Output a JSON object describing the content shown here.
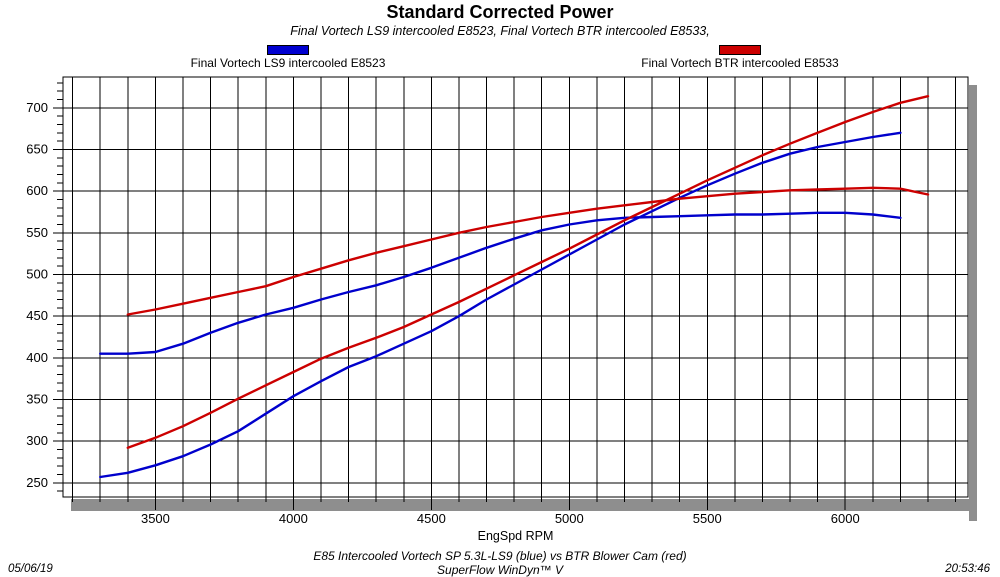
{
  "header": {
    "title": "Standard Corrected Power",
    "subtitle": "Final Vortech LS9 intercooled E8523, Final Vortech BTR intercooled E8533,"
  },
  "legend": [
    {
      "label": "Final Vortech LS9 intercooled E8523",
      "color": "#0000d0"
    },
    {
      "label": "Final Vortech BTR intercooled E8533",
      "color": "#cc0000"
    }
  ],
  "footer": {
    "date": "05/06/19",
    "note_line1": "E85 Intercooled Vortech SP 5.3L-LS9 (blue) vs BTR Blower Cam (red)",
    "note_line2": "SuperFlow WinDyn™ V",
    "time": "20:53:46"
  },
  "chart_data": {
    "type": "line",
    "title": "Standard Corrected Power",
    "xlabel": "EngSpd RPM",
    "ylabel": "",
    "xlim": [
      3165,
      6445
    ],
    "ylim": [
      233,
      737
    ],
    "x_major_ticks": [
      3500,
      4000,
      4500,
      5000,
      5500,
      6000
    ],
    "x_grid_step": 100,
    "y_major_ticks": [
      250,
      300,
      350,
      400,
      450,
      500,
      550,
      600,
      650,
      700
    ],
    "y_minor_tick_step": 10,
    "grid": "full grid: vertical every 100 RPM, horizontal every 50",
    "legend_position": "top, outside plot",
    "frame_shadow_color": "#8e8e8e",
    "grid_color": "#000000",
    "series": [
      {
        "name": "Final Vortech LS9 intercooled E8523 - power curve (blue)",
        "color": "#0000cc",
        "x": [
          3300,
          3400,
          3500,
          3600,
          3700,
          3800,
          3900,
          4000,
          4100,
          4200,
          4300,
          4400,
          4500,
          4600,
          4700,
          4800,
          4900,
          5000,
          5100,
          5200,
          5300,
          5400,
          5500,
          5600,
          5700,
          5800,
          5900,
          6000,
          6100,
          6200
        ],
        "y": [
          257,
          262,
          271,
          282,
          296,
          312,
          333,
          354,
          372,
          389,
          402,
          417,
          432,
          450,
          470,
          488,
          506,
          524,
          542,
          560,
          576,
          592,
          607,
          621,
          634,
          645,
          653,
          659,
          665,
          670
        ]
      },
      {
        "name": "Final Vortech LS9 intercooled E8523 - torque curve (blue)",
        "color": "#0000cc",
        "x": [
          3300,
          3400,
          3500,
          3600,
          3700,
          3800,
          3900,
          4000,
          4100,
          4200,
          4300,
          4400,
          4500,
          4600,
          4700,
          4800,
          4900,
          5000,
          5100,
          5200,
          5300,
          5400,
          5500,
          5600,
          5700,
          5800,
          5900,
          6000,
          6100,
          6200
        ],
        "y": [
          405,
          405,
          407,
          417,
          430,
          442,
          452,
          460,
          470,
          479,
          487,
          497,
          508,
          520,
          532,
          543,
          553,
          560,
          565,
          568,
          569,
          570,
          571,
          572,
          572,
          573,
          574,
          574,
          572,
          568
        ]
      },
      {
        "name": "Final Vortech BTR intercooled E8533 - power curve (red)",
        "color": "#cc0000",
        "x": [
          3400,
          3500,
          3600,
          3700,
          3800,
          3900,
          4000,
          4100,
          4200,
          4300,
          4400,
          4500,
          4600,
          4700,
          4800,
          4900,
          5000,
          5100,
          5200,
          5300,
          5400,
          5500,
          5600,
          5700,
          5800,
          5900,
          6000,
          6100,
          6200,
          6300
        ],
        "y": [
          292,
          304,
          318,
          334,
          351,
          367,
          383,
          399,
          412,
          424,
          437,
          452,
          467,
          483,
          499,
          515,
          531,
          548,
          565,
          581,
          597,
          613,
          628,
          643,
          657,
          670,
          683,
          695,
          706,
          714
        ]
      },
      {
        "name": "Final Vortech BTR intercooled E8533 - torque curve (red)",
        "color": "#cc0000",
        "x": [
          3400,
          3500,
          3600,
          3700,
          3800,
          3900,
          4000,
          4100,
          4200,
          4300,
          4400,
          4500,
          4600,
          4700,
          4800,
          4900,
          5000,
          5100,
          5200,
          5300,
          5400,
          5500,
          5600,
          5700,
          5800,
          5900,
          6000,
          6100,
          6200,
          6300
        ],
        "y": [
          452,
          458,
          465,
          472,
          479,
          486,
          497,
          507,
          517,
          526,
          534,
          542,
          550,
          557,
          563,
          569,
          574,
          579,
          583,
          587,
          591,
          594,
          597,
          599,
          601,
          602,
          603,
          604,
          603,
          596
        ]
      }
    ]
  }
}
